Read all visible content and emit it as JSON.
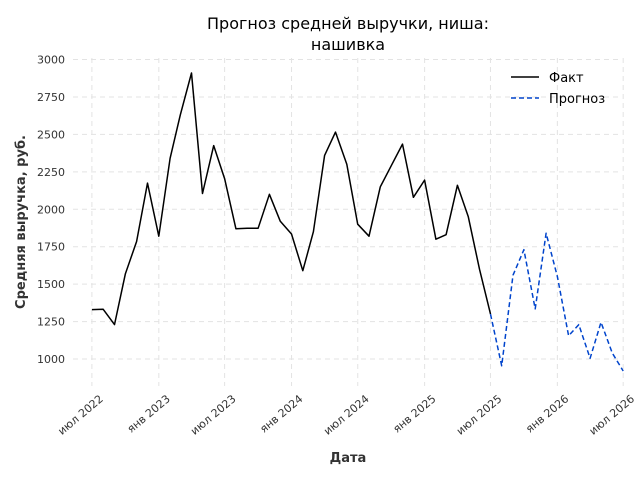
{
  "chart_data": {
    "type": "line",
    "title": [
      "Прогноз средней выручки, ниша:",
      "нашивка"
    ],
    "xlabel": "Дата",
    "ylabel": "Средняя выручка, руб.",
    "xlim": [
      "2022-05-10",
      "2026-06-25"
    ],
    "ylim": [
      820,
      3010
    ],
    "yticks": [
      1000,
      1250,
      1500,
      1750,
      2000,
      2250,
      2500,
      2750,
      3000
    ],
    "xticks": [
      {
        "date": "2022-07-01",
        "label": "июл 2022"
      },
      {
        "date": "2023-01-01",
        "label": "янв 2023"
      },
      {
        "date": "2023-07-01",
        "label": "июл 2023"
      },
      {
        "date": "2024-01-01",
        "label": "янв 2024"
      },
      {
        "date": "2024-07-01",
        "label": "июл 2024"
      },
      {
        "date": "2025-01-01",
        "label": "янв 2025"
      },
      {
        "date": "2025-07-01",
        "label": "июл 2025"
      },
      {
        "date": "2026-01-01",
        "label": "янв 2026"
      },
      {
        "date": "2026-07-01",
        "label": "июл 2026"
      }
    ],
    "grid": true,
    "legend_position": "top-right",
    "series": [
      {
        "name": "Факт",
        "color": "#000000",
        "style": "solid",
        "x": [
          "2022-07-01",
          "2022-08-01",
          "2022-09-01",
          "2022-10-01",
          "2022-11-01",
          "2022-12-01",
          "2023-01-01",
          "2023-02-01",
          "2023-03-01",
          "2023-04-01",
          "2023-05-01",
          "2023-06-01",
          "2023-07-01",
          "2023-08-01",
          "2023-09-01",
          "2023-10-01",
          "2023-11-01",
          "2023-12-01",
          "2024-01-01",
          "2024-02-01",
          "2024-03-01",
          "2024-04-01",
          "2024-05-01",
          "2024-06-01",
          "2024-07-01",
          "2024-08-01",
          "2024-09-01",
          "2024-10-01",
          "2024-11-01",
          "2024-12-01",
          "2025-01-01",
          "2025-02-01",
          "2025-03-01",
          "2025-04-01",
          "2025-05-01",
          "2025-06-01",
          "2025-07-01"
        ],
        "y": [
          1330,
          1332,
          1230,
          1570,
          1785,
          2175,
          1820,
          2340,
          2630,
          2910,
          2105,
          2425,
          2205,
          1870,
          1873,
          1873,
          2100,
          1920,
          1835,
          1590,
          1850,
          2360,
          2515,
          2300,
          1900,
          1820,
          2150,
          2290,
          2435,
          2080,
          2195,
          1800,
          1830,
          2160,
          1950,
          1600,
          1300
        ]
      },
      {
        "name": "Прогноз",
        "color": "#0044cc",
        "style": "dashed",
        "x": [
          "2025-07-01",
          "2025-08-01",
          "2025-09-01",
          "2025-10-01",
          "2025-11-01",
          "2025-12-01",
          "2026-01-01",
          "2026-02-01",
          "2026-03-01",
          "2026-04-01",
          "2026-05-01",
          "2026-06-01",
          "2026-07-01"
        ],
        "y": [
          1300,
          955,
          1560,
          1730,
          1335,
          1840,
          1550,
          1155,
          1230,
          1005,
          1245,
          1040,
          920
        ]
      }
    ]
  }
}
